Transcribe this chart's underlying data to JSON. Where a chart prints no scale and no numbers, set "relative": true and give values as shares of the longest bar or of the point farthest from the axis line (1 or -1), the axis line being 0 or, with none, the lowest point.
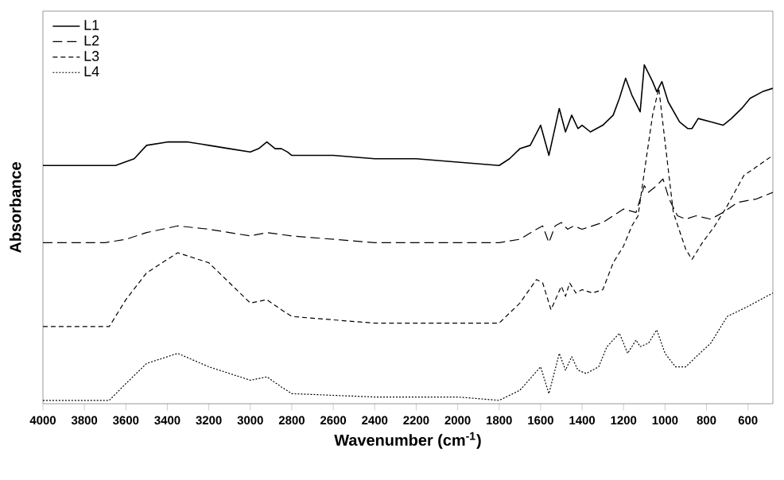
{
  "chart_data": {
    "type": "line",
    "relative": true,
    "xlabel": "Wavenumber (cm$^{-1}$)",
    "ylabel": "Absorbance",
    "xlim": [
      4000,
      480
    ],
    "xticks": [
      4000,
      3800,
      3600,
      3400,
      3200,
      3000,
      2800,
      2600,
      2400,
      2200,
      2000,
      1800,
      1600,
      1400,
      1200,
      1000,
      800,
      600
    ],
    "legend": "top left",
    "grid": false,
    "marker": "none",
    "series": [
      {
        "name": "L1",
        "color": "#000000",
        "line_style": "solid",
        "x": [
          4000,
          3700,
          3650,
          3560,
          3500,
          3400,
          3300,
          3200,
          3100,
          3000,
          2960,
          2920,
          2880,
          2850,
          2820,
          2800,
          2600,
          2400,
          2200,
          2000,
          1800,
          1750,
          1700,
          1650,
          1600,
          1560,
          1510,
          1480,
          1450,
          1420,
          1400,
          1360,
          1300,
          1250,
          1220,
          1190,
          1160,
          1120,
          1100,
          1060,
          1040,
          1015,
          985,
          930,
          890,
          870,
          840,
          780,
          720,
          680,
          630,
          590,
          530,
          480
        ],
        "values": [
          0.7,
          0.7,
          0.7,
          0.72,
          0.76,
          0.77,
          0.77,
          0.76,
          0.75,
          0.74,
          0.75,
          0.77,
          0.75,
          0.75,
          0.74,
          0.73,
          0.73,
          0.72,
          0.72,
          0.71,
          0.7,
          0.72,
          0.75,
          0.76,
          0.82,
          0.73,
          0.87,
          0.8,
          0.85,
          0.81,
          0.82,
          0.8,
          0.82,
          0.85,
          0.9,
          0.96,
          0.91,
          0.86,
          1.0,
          0.95,
          0.92,
          0.95,
          0.89,
          0.83,
          0.81,
          0.81,
          0.84,
          0.83,
          0.82,
          0.84,
          0.87,
          0.9,
          0.92,
          0.93
        ]
      },
      {
        "name": "L2",
        "color": "#000000",
        "line_style": "dashed",
        "x": [
          4000,
          3700,
          3600,
          3500,
          3350,
          3200,
          3000,
          2920,
          2800,
          2400,
          2000,
          1800,
          1700,
          1620,
          1590,
          1560,
          1530,
          1500,
          1470,
          1440,
          1400,
          1300,
          1250,
          1200,
          1140,
          1100,
          1080,
          1060,
          1040,
          1010,
          980,
          940,
          900,
          850,
          780,
          720,
          650,
          560,
          480
        ],
        "values": [
          0.47,
          0.47,
          0.48,
          0.5,
          0.52,
          0.51,
          0.49,
          0.5,
          0.49,
          0.47,
          0.47,
          0.47,
          0.48,
          0.51,
          0.52,
          0.47,
          0.52,
          0.53,
          0.51,
          0.52,
          0.51,
          0.53,
          0.55,
          0.57,
          0.56,
          0.64,
          0.62,
          0.63,
          0.64,
          0.66,
          0.6,
          0.55,
          0.54,
          0.55,
          0.54,
          0.56,
          0.59,
          0.6,
          0.62
        ]
      },
      {
        "name": "L3",
        "color": "#000000",
        "line_style": "dashed",
        "x": [
          4000,
          3680,
          3600,
          3500,
          3350,
          3200,
          3100,
          3000,
          2920,
          2850,
          2800,
          2400,
          1800,
          1700,
          1620,
          1590,
          1550,
          1500,
          1480,
          1460,
          1430,
          1400,
          1350,
          1300,
          1250,
          1200,
          1160,
          1130,
          1100,
          1060,
          1030,
          1000,
          960,
          900,
          870,
          820,
          760,
          700,
          620,
          480
        ],
        "values": [
          0.22,
          0.22,
          0.3,
          0.38,
          0.44,
          0.41,
          0.35,
          0.29,
          0.3,
          0.27,
          0.25,
          0.23,
          0.23,
          0.29,
          0.36,
          0.35,
          0.27,
          0.34,
          0.31,
          0.35,
          0.32,
          0.33,
          0.32,
          0.33,
          0.41,
          0.46,
          0.52,
          0.55,
          0.68,
          0.85,
          0.93,
          0.77,
          0.56,
          0.45,
          0.42,
          0.47,
          0.52,
          0.58,
          0.67,
          0.73
        ]
      },
      {
        "name": "L4",
        "color": "#000000",
        "line_style": "dotted",
        "x": [
          4000,
          3680,
          3600,
          3500,
          3350,
          3200,
          3000,
          2920,
          2850,
          2800,
          2400,
          2200,
          2000,
          1800,
          1700,
          1600,
          1560,
          1510,
          1480,
          1450,
          1420,
          1380,
          1320,
          1280,
          1220,
          1180,
          1140,
          1120,
          1080,
          1040,
          1000,
          950,
          900,
          850,
          780,
          700,
          600,
          480
        ],
        "values": [
          0.0,
          0.0,
          0.05,
          0.11,
          0.14,
          0.1,
          0.06,
          0.07,
          0.04,
          0.02,
          0.01,
          0.01,
          0.01,
          0.0,
          0.03,
          0.1,
          0.02,
          0.14,
          0.09,
          0.13,
          0.09,
          0.08,
          0.1,
          0.16,
          0.2,
          0.14,
          0.18,
          0.16,
          0.17,
          0.21,
          0.14,
          0.1,
          0.1,
          0.13,
          0.17,
          0.25,
          0.28,
          0.32
        ]
      }
    ]
  }
}
